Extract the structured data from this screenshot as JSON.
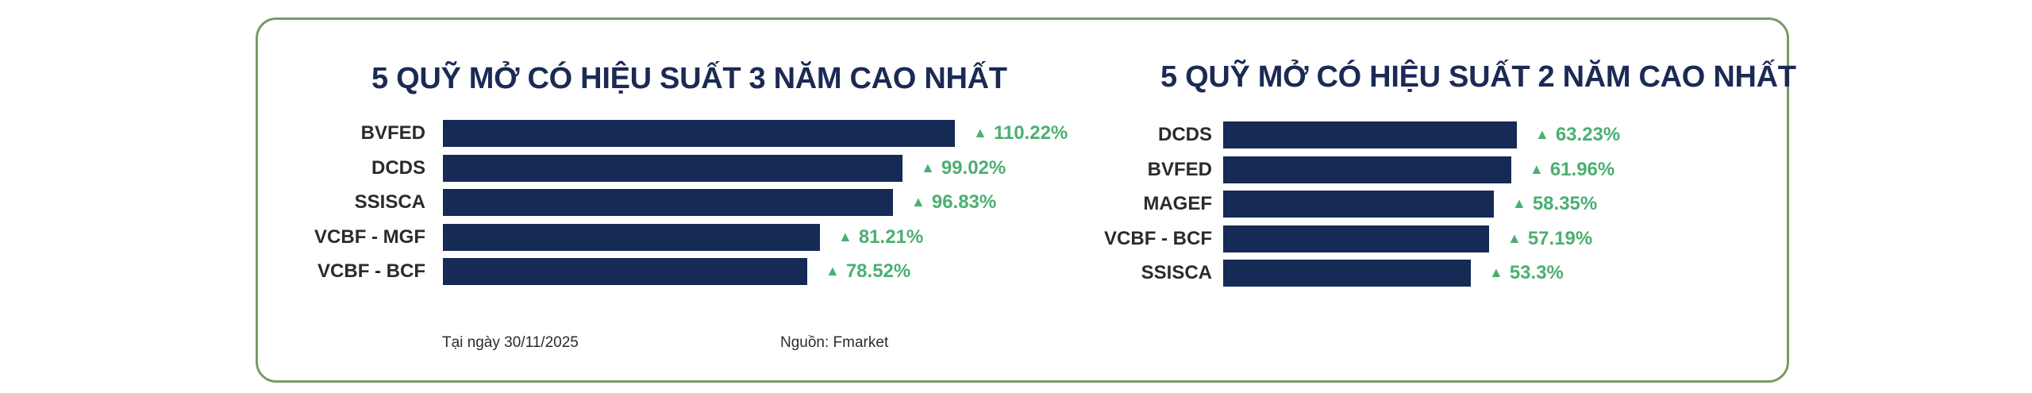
{
  "chart_data": [
    {
      "type": "bar",
      "orientation": "horizontal",
      "title": "5 QUỸ MỞ CÓ HIỆU SUẤT 3 NĂM CAO NHẤT",
      "categories": [
        "BVFED",
        "DCDS",
        "SSISCA",
        "VCBF - MGF",
        "VCBF - BCF"
      ],
      "values": [
        110.22,
        99.02,
        96.83,
        81.21,
        78.52
      ],
      "value_labels": [
        "110.22%",
        "99.02%",
        "96.83%",
        "81.21%",
        "78.52%"
      ],
      "xlim": [
        0,
        110.22
      ],
      "grid": false,
      "bar_color": "#162a56",
      "label_color": "#4caf72",
      "label_icon": "up-triangle-icon",
      "label_icon_glyph": "▲"
    },
    {
      "type": "bar",
      "orientation": "horizontal",
      "title": "5 QUỸ MỞ CÓ HIỆU SUẤT 2 NĂM CAO NHẤT",
      "categories": [
        "DCDS",
        "BVFED",
        "MAGEF",
        "VCBF - BCF",
        "SSISCA"
      ],
      "values": [
        63.23,
        61.96,
        58.35,
        57.19,
        53.3
      ],
      "value_labels": [
        "63.23%",
        "61.96%",
        "58.35%",
        "57.19%",
        "53.3%"
      ],
      "xlim": [
        0,
        63.23
      ],
      "grid": false,
      "bar_color": "#162a56",
      "label_color": "#4caf72",
      "label_icon": "up-triangle-icon",
      "label_icon_glyph": "▲"
    }
  ],
  "footer": {
    "date": "Tại ngày 30/11/2025",
    "source": "Nguồn: Fmarket"
  },
  "colors": {
    "border": "#7a9a64",
    "title": "#1b2a55"
  }
}
